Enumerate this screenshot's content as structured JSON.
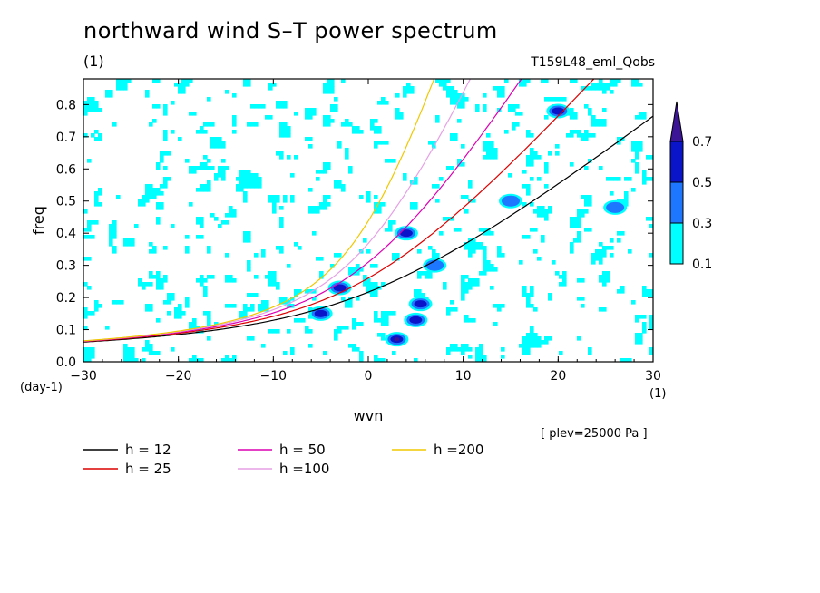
{
  "title": "northward wind S–T power spectrum",
  "subtitle_left": "(1)",
  "subtitle_right": "T159L48_eml_Qobs",
  "plev_note": "[ plev=25000 Pa ]",
  "chart_data": {
    "type": "contour",
    "xlabel": "wvn",
    "ylabel": "freq",
    "x_unit": "(1)",
    "y_unit": "(day-1)",
    "xlim": [
      -30,
      30
    ],
    "ylim": [
      0,
      0.88
    ],
    "xticks": [
      -30,
      -20,
      -10,
      0,
      10,
      20,
      30
    ],
    "yticks": [
      0.0,
      0.1,
      0.2,
      0.3,
      0.4,
      0.5,
      0.6,
      0.7,
      0.8
    ],
    "xtick_labels": [
      "−30",
      "−20",
      "−10",
      "0",
      "10",
      "20",
      "30"
    ],
    "ytick_labels": [
      "0.0",
      "0.1",
      "0.2",
      "0.3",
      "0.4",
      "0.5",
      "0.6",
      "0.7",
      "0.8"
    ],
    "colorbar": {
      "levels": [
        0.1,
        0.3,
        0.5,
        0.7
      ],
      "labels": [
        "0.1",
        "0.3",
        "0.5",
        "0.7"
      ],
      "colors": [
        "#00ffff",
        "#1e78ff",
        "#0a14c8",
        "#3c1496"
      ]
    },
    "dispersion_curves": [
      {
        "label": "h = 12",
        "h": 12,
        "color": "#000000"
      },
      {
        "label": "h = 25",
        "h": 25,
        "color": "#dc0000"
      },
      {
        "label": "h = 50",
        "h": 50,
        "color": "#dc00b4"
      },
      {
        "label": "h =100",
        "h": 100,
        "color": "#e6a0e6"
      },
      {
        "label": "h =200",
        "h": 200,
        "color": "#f0c800"
      }
    ],
    "contour_regions": [
      {
        "x": 3,
        "y": 0.07,
        "level": 0.7
      },
      {
        "x": 5,
        "y": 0.13,
        "level": 0.5
      },
      {
        "x": 5.5,
        "y": 0.18,
        "level": 0.5
      },
      {
        "x": 4,
        "y": 0.4,
        "level": 0.5
      },
      {
        "x": -5,
        "y": 0.15,
        "level": 0.5
      },
      {
        "x": -3,
        "y": 0.23,
        "level": 0.5
      },
      {
        "x": 20,
        "y": 0.78,
        "level": 0.5
      },
      {
        "x": 7,
        "y": 0.3,
        "level": 0.3
      },
      {
        "x": 15,
        "y": 0.5,
        "level": 0.3
      },
      {
        "x": 26,
        "y": 0.48,
        "level": 0.3
      }
    ]
  }
}
